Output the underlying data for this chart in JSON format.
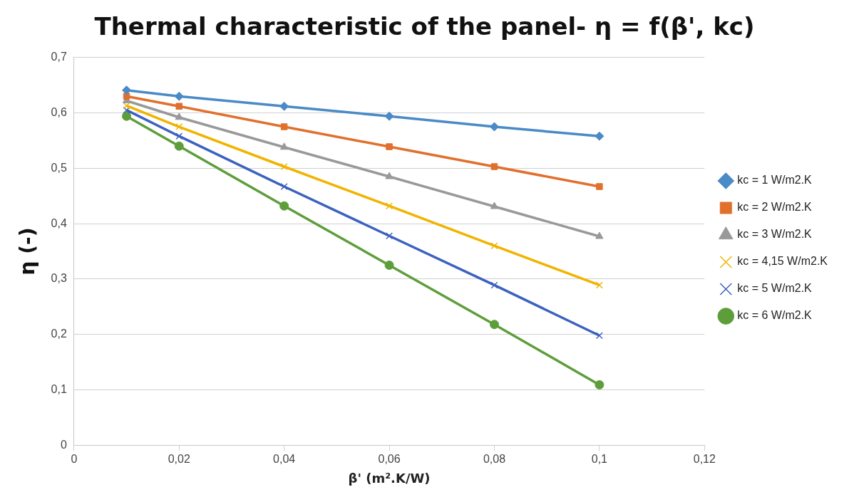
{
  "chart_data": {
    "type": "line",
    "title": "Thermal characteristic of the panel- η = f(β', kc)",
    "xlabel": "β' (m².K/W)",
    "ylabel": "η (-)",
    "x": [
      0.01,
      0.02,
      0.04,
      0.06,
      0.08,
      0.1
    ],
    "series": [
      {
        "name": "kc = 1 W/m2.K",
        "color": "#4a8ac6",
        "marker": "diamond",
        "values": [
          0.641,
          0.63,
          0.612,
          0.594,
          0.575,
          0.558
        ]
      },
      {
        "name": "kc = 2 W/m2.K",
        "color": "#e0702c",
        "marker": "square",
        "values": [
          0.63,
          0.612,
          0.575,
          0.539,
          0.503,
          0.467
        ]
      },
      {
        "name": "kc = 3 W/m2.K",
        "color": "#999999",
        "marker": "triangle",
        "values": [
          0.622,
          0.592,
          0.538,
          0.485,
          0.431,
          0.377
        ]
      },
      {
        "name": "kc = 4,15 W/m2.K",
        "color": "#f0b400",
        "marker": "cross",
        "values": [
          0.613,
          0.575,
          0.503,
          0.432,
          0.36,
          0.289
        ]
      },
      {
        "name": "kc = 5 W/m2.K",
        "color": "#3b62c0",
        "marker": "cross",
        "values": [
          0.605,
          0.558,
          0.467,
          0.378,
          0.289,
          0.198
        ]
      },
      {
        "name": "kc = 6 W/m2.K",
        "color": "#5e9e3a",
        "marker": "circle",
        "values": [
          0.594,
          0.54,
          0.432,
          0.325,
          0.218,
          0.109
        ]
      }
    ],
    "xlim": [
      0,
      0.12
    ],
    "xticks": [
      0,
      {
        "value": 0.02,
        "label": "0,02"
      },
      {
        "value": 0.04,
        "label": "0,04"
      },
      {
        "value": 0.06,
        "label": "0,06"
      },
      {
        "value": 0.08,
        "label": "0,08"
      },
      {
        "value": 0.1,
        "label": "0,1"
      },
      {
        "value": 0.12,
        "label": "0,12"
      }
    ],
    "ylim": [
      0,
      0.7
    ],
    "yticks": [
      0,
      {
        "value": 0.1,
        "label": "0,1"
      },
      {
        "value": 0.2,
        "label": "0,2"
      },
      {
        "value": 0.3,
        "label": "0,3"
      },
      {
        "value": 0.4,
        "label": "0,4"
      },
      {
        "value": 0.5,
        "label": "0,5"
      },
      {
        "value": 0.6,
        "label": "0,6"
      },
      {
        "value": 0.7,
        "label": "0,7"
      }
    ],
    "grid": "y",
    "legend": "right",
    "line_style": "solid"
  }
}
